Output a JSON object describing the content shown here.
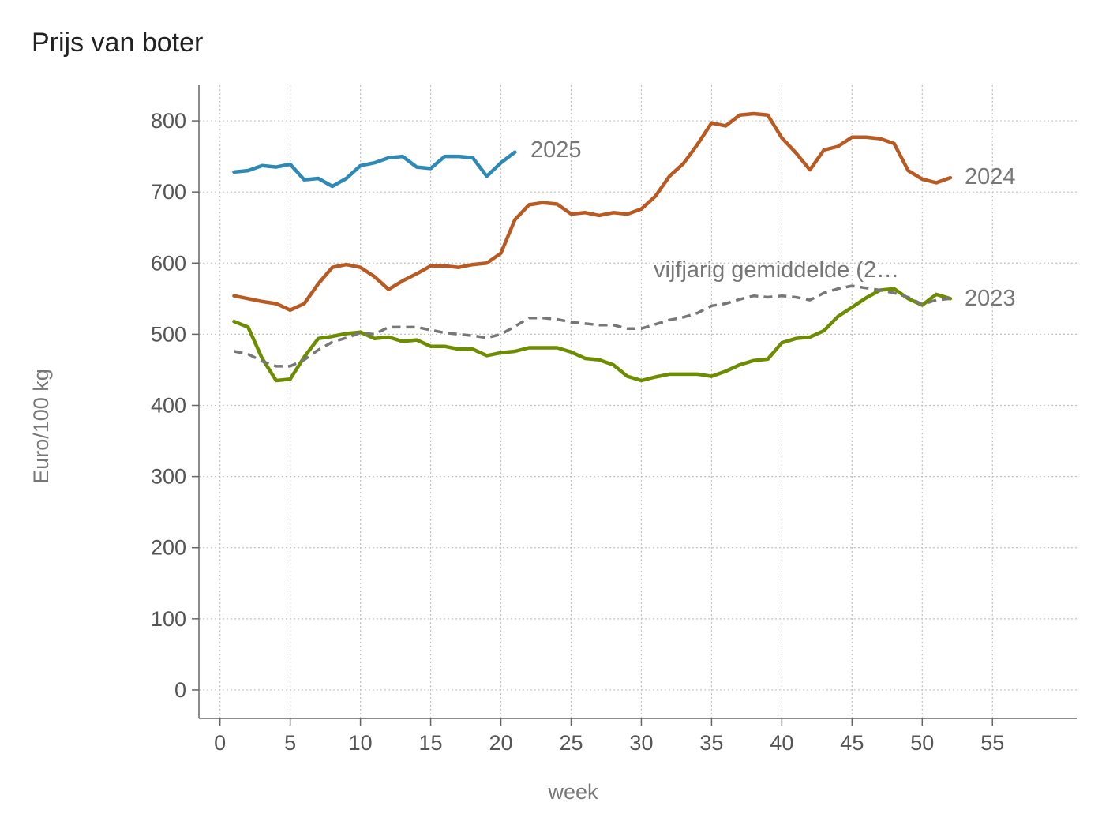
{
  "chart_data": {
    "type": "line",
    "title": "Prijs van boter",
    "xlabel": "week",
    "ylabel": "Euro/100 kg",
    "xlim": [
      -1.5,
      61
    ],
    "ylim": [
      -40,
      850
    ],
    "xticks": [
      0,
      5,
      10,
      15,
      20,
      25,
      30,
      35,
      40,
      45,
      50,
      55
    ],
    "yticks": [
      0,
      100,
      200,
      300,
      400,
      500,
      600,
      700,
      800
    ],
    "grid": true,
    "legend": "none (direct labels at line ends)",
    "series": [
      {
        "name": "2025",
        "color": "#2e8ab5",
        "dashed": false,
        "x": [
          1,
          2,
          3,
          4,
          5,
          6,
          7,
          8,
          9,
          10,
          11,
          12,
          13,
          14,
          15,
          16,
          17,
          18,
          19,
          20,
          21
        ],
        "values": [
          728,
          730,
          737,
          735,
          739,
          717,
          719,
          708,
          719,
          737,
          741,
          748,
          750,
          735,
          733,
          750,
          750,
          748,
          722,
          741,
          756
        ]
      },
      {
        "name": "2024",
        "color": "#b85a21",
        "dashed": false,
        "x": [
          1,
          2,
          3,
          4,
          5,
          6,
          7,
          8,
          9,
          10,
          11,
          12,
          13,
          14,
          15,
          16,
          17,
          18,
          19,
          20,
          21,
          22,
          23,
          24,
          25,
          26,
          27,
          28,
          29,
          30,
          31,
          32,
          33,
          34,
          35,
          36,
          37,
          38,
          39,
          40,
          41,
          42,
          43,
          44,
          45,
          46,
          47,
          48,
          49,
          50,
          51,
          52
        ],
        "values": [
          554,
          550,
          546,
          543,
          534,
          543,
          571,
          594,
          598,
          594,
          581,
          563,
          575,
          585,
          596,
          596,
          594,
          598,
          600,
          614,
          661,
          682,
          685,
          683,
          669,
          671,
          667,
          671,
          669,
          676,
          694,
          722,
          740,
          767,
          797,
          793,
          808,
          810,
          808,
          776,
          755,
          731,
          759,
          764,
          777,
          777,
          775,
          768,
          730,
          718,
          713,
          720
        ]
      },
      {
        "name": "2023",
        "color": "#6e8c00",
        "dashed": false,
        "x": [
          1,
          2,
          3,
          4,
          5,
          6,
          7,
          8,
          9,
          10,
          11,
          12,
          13,
          14,
          15,
          16,
          17,
          18,
          19,
          20,
          21,
          22,
          23,
          24,
          25,
          26,
          27,
          28,
          29,
          30,
          31,
          32,
          33,
          34,
          35,
          36,
          37,
          38,
          39,
          40,
          41,
          42,
          43,
          44,
          45,
          46,
          47,
          48,
          49,
          50,
          51,
          52
        ],
        "values": [
          518,
          510,
          466,
          435,
          437,
          468,
          494,
          497,
          501,
          503,
          494,
          496,
          490,
          492,
          483,
          483,
          479,
          479,
          470,
          474,
          476,
          481,
          481,
          481,
          475,
          466,
          464,
          457,
          441,
          435,
          440,
          444,
          444,
          444,
          441,
          448,
          457,
          463,
          465,
          488,
          494,
          496,
          505,
          525,
          538,
          551,
          562,
          564,
          550,
          541,
          556,
          550
        ]
      },
      {
        "name": "vijfjarig gemiddelde (2…",
        "color": "#777777",
        "dashed": true,
        "x": [
          1,
          2,
          3,
          4,
          5,
          6,
          7,
          8,
          9,
          10,
          11,
          12,
          13,
          14,
          15,
          16,
          17,
          18,
          19,
          20,
          21,
          22,
          23,
          24,
          25,
          26,
          27,
          28,
          29,
          30,
          31,
          32,
          33,
          34,
          35,
          36,
          37,
          38,
          39,
          40,
          41,
          42,
          43,
          44,
          45,
          46,
          47,
          48,
          49,
          50,
          51,
          52
        ],
        "values": [
          476,
          472,
          462,
          455,
          455,
          464,
          478,
          489,
          495,
          502,
          500,
          510,
          510,
          510,
          506,
          502,
          500,
          498,
          495,
          500,
          511,
          523,
          523,
          521,
          517,
          515,
          513,
          513,
          508,
          508,
          514,
          520,
          524,
          530,
          540,
          543,
          549,
          554,
          552,
          554,
          552,
          548,
          558,
          564,
          568,
          565,
          562,
          558,
          552,
          542,
          548,
          550
        ]
      }
    ]
  }
}
